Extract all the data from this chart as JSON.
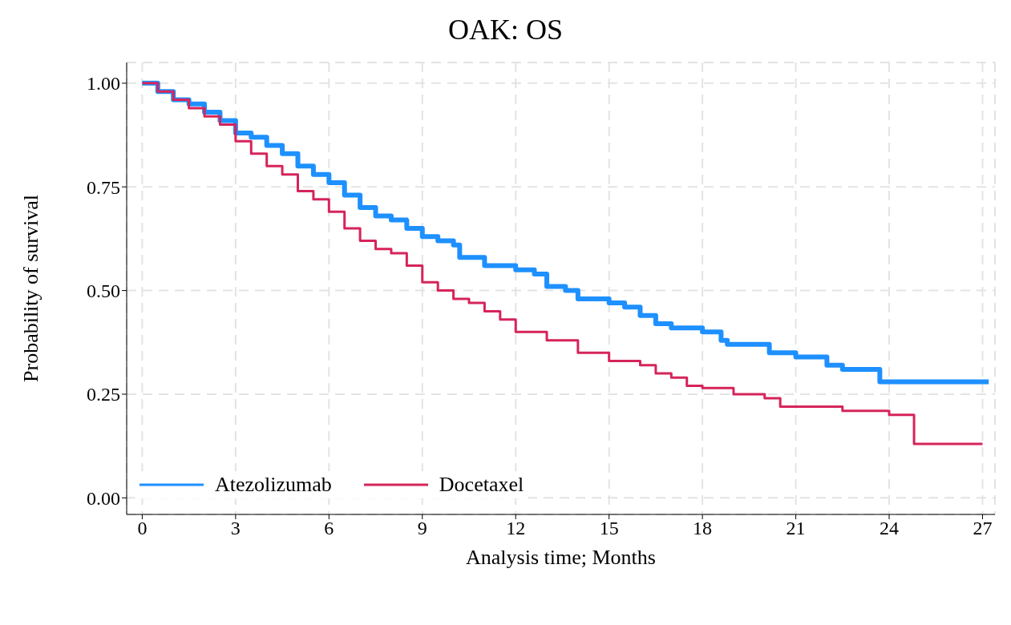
{
  "chart_data": {
    "type": "step",
    "title": "OAK: OS",
    "xlabel": "Analysis time; Months",
    "ylabel": "Probability of survival",
    "xlim": [
      -0.5,
      27.4
    ],
    "xticks": [
      0,
      3,
      6,
      9,
      12,
      15,
      18,
      21,
      24,
      27
    ],
    "ylim": [
      -0.04,
      1.05
    ],
    "yticks": [
      {
        "value": 0,
        "label": "0.00"
      },
      {
        "value": 0.25,
        "label": "0.25"
      },
      {
        "value": 0.5,
        "label": "0.50"
      },
      {
        "value": 0.75,
        "label": "0.75"
      },
      {
        "value": 1,
        "label": "1.00"
      }
    ],
    "grid": true,
    "legend": "bottom left",
    "marker": "none",
    "line_style": "solid",
    "series": [
      {
        "name": "Atezolizumab",
        "color": "#1e90ff",
        "x": [
          0,
          0.5,
          1,
          1.5,
          2,
          2.5,
          3,
          3.5,
          4,
          4.5,
          5,
          5.5,
          6,
          6.5,
          7,
          7.5,
          8,
          8.5,
          9,
          9.5,
          10,
          10.2,
          11,
          12,
          12.6,
          13,
          13.6,
          14,
          15,
          15.5,
          16,
          16.5,
          17,
          18,
          18.6,
          18.8,
          20.15,
          21,
          22,
          22.5,
          23.7,
          27.2
        ],
        "values": [
          1,
          0.98,
          0.96,
          0.95,
          0.93,
          0.91,
          0.88,
          0.87,
          0.85,
          0.83,
          0.8,
          0.78,
          0.76,
          0.73,
          0.7,
          0.68,
          0.67,
          0.65,
          0.63,
          0.62,
          0.61,
          0.58,
          0.56,
          0.55,
          0.54,
          0.51,
          0.5,
          0.48,
          0.47,
          0.46,
          0.44,
          0.42,
          0.41,
          0.4,
          0.38,
          0.37,
          0.35,
          0.34,
          0.32,
          0.31,
          0.28,
          0.28
        ]
      },
      {
        "name": "Docetaxel",
        "color": "#d6245a",
        "x": [
          0,
          0.5,
          1,
          1.5,
          2,
          2.5,
          3,
          3.5,
          4,
          4.5,
          5,
          5.5,
          6,
          6.5,
          7,
          7.5,
          8,
          8.5,
          9,
          9.5,
          10,
          10.5,
          11,
          11.5,
          12,
          13,
          14,
          15,
          16,
          16.5,
          17,
          17.5,
          18,
          19,
          20,
          20.5,
          22.5,
          24,
          24.8,
          27
        ],
        "values": [
          1,
          0.98,
          0.96,
          0.94,
          0.92,
          0.9,
          0.86,
          0.83,
          0.8,
          0.78,
          0.74,
          0.72,
          0.69,
          0.65,
          0.62,
          0.6,
          0.59,
          0.56,
          0.52,
          0.5,
          0.48,
          0.47,
          0.45,
          0.43,
          0.4,
          0.38,
          0.35,
          0.33,
          0.32,
          0.3,
          0.29,
          0.27,
          0.265,
          0.25,
          0.24,
          0.22,
          0.21,
          0.2,
          0.13,
          0.13
        ]
      }
    ]
  }
}
